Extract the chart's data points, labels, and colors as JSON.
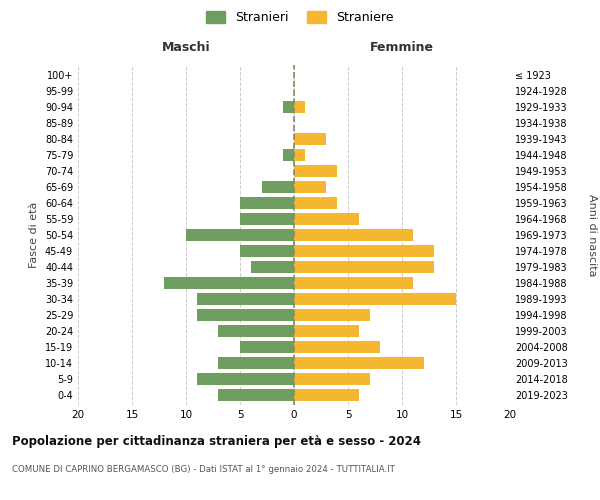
{
  "age_groups": [
    "0-4",
    "5-9",
    "10-14",
    "15-19",
    "20-24",
    "25-29",
    "30-34",
    "35-39",
    "40-44",
    "45-49",
    "50-54",
    "55-59",
    "60-64",
    "65-69",
    "70-74",
    "75-79",
    "80-84",
    "85-89",
    "90-94",
    "95-99",
    "100+"
  ],
  "birth_years": [
    "2019-2023",
    "2014-2018",
    "2009-2013",
    "2004-2008",
    "1999-2003",
    "1994-1998",
    "1989-1993",
    "1984-1988",
    "1979-1983",
    "1974-1978",
    "1969-1973",
    "1964-1968",
    "1959-1963",
    "1954-1958",
    "1949-1953",
    "1944-1948",
    "1939-1943",
    "1934-1938",
    "1929-1933",
    "1924-1928",
    "≤ 1923"
  ],
  "maschi": [
    7,
    9,
    7,
    5,
    7,
    9,
    9,
    12,
    4,
    5,
    10,
    5,
    5,
    3,
    0,
    1,
    0,
    0,
    1,
    0,
    0
  ],
  "femmine": [
    6,
    7,
    12,
    8,
    6,
    7,
    15,
    11,
    13,
    13,
    11,
    6,
    4,
    3,
    4,
    1,
    3,
    0,
    1,
    0,
    0
  ],
  "maschi_color": "#6e9e5f",
  "femmine_color": "#f5b731",
  "grid_color": "#cccccc",
  "dashed_color": "#888866",
  "title": "Popolazione per cittadinanza straniera per età e sesso - 2024",
  "subtitle": "COMUNE DI CAPRINO BERGAMASCO (BG) - Dati ISTAT al 1° gennaio 2024 - TUTTITALIA.IT",
  "xlabel_left": "Maschi",
  "xlabel_right": "Femmine",
  "ylabel_left": "Fasce di età",
  "ylabel_right": "Anni di nascita",
  "legend_stranieri": "Stranieri",
  "legend_straniere": "Straniere",
  "xlim": 20,
  "bar_height": 0.75
}
